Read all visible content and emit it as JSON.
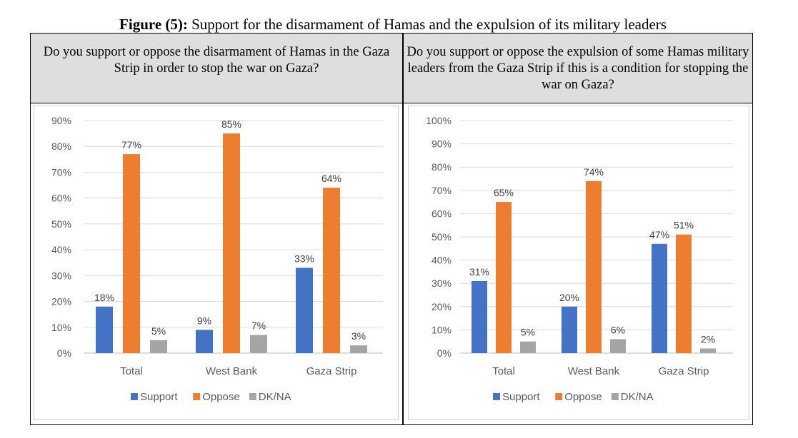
{
  "figure": {
    "title_bold": "Figure (5):",
    "title_rest": " Support for the disarmament of Hamas and the expulsion of its military leaders"
  },
  "colors": {
    "Support": "#4472C4",
    "Oppose": "#ED7D31",
    "DK/NA": "#A5A5A5"
  },
  "chart_data": [
    {
      "type": "bar",
      "title": "Do you support or oppose the disarmament of Hamas in the Gaza Strip in order to stop the war on Gaza?",
      "categories": [
        "Total",
        "West Bank",
        "Gaza Strip"
      ],
      "series": [
        {
          "name": "Support",
          "values": [
            18,
            9,
            33
          ]
        },
        {
          "name": "Oppose",
          "values": [
            77,
            85,
            64
          ]
        },
        {
          "name": "DK/NA",
          "values": [
            5,
            7,
            3
          ]
        }
      ],
      "ylim": [
        0,
        90
      ],
      "yticks": [
        "0%",
        "10%",
        "20%",
        "30%",
        "40%",
        "50%",
        "60%",
        "70%",
        "80%",
        "90%"
      ],
      "grid": true,
      "legend": "bottom"
    },
    {
      "type": "bar",
      "title": "Do you support or oppose the expulsion of some Hamas military leaders from the Gaza Strip if this is a condition for stopping the war on Gaza?",
      "categories": [
        "Total",
        "West Bank",
        "Gaza Strip"
      ],
      "series": [
        {
          "name": "Support",
          "values": [
            31,
            20,
            47
          ]
        },
        {
          "name": "Oppose",
          "values": [
            65,
            74,
            51
          ]
        },
        {
          "name": "DK/NA",
          "values": [
            5,
            6,
            2
          ]
        }
      ],
      "ylim": [
        0,
        100
      ],
      "yticks": [
        "0%",
        "10%",
        "20%",
        "30%",
        "40%",
        "50%",
        "60%",
        "70%",
        "80%",
        "90%",
        "100%"
      ],
      "grid": true,
      "legend": "bottom"
    }
  ]
}
